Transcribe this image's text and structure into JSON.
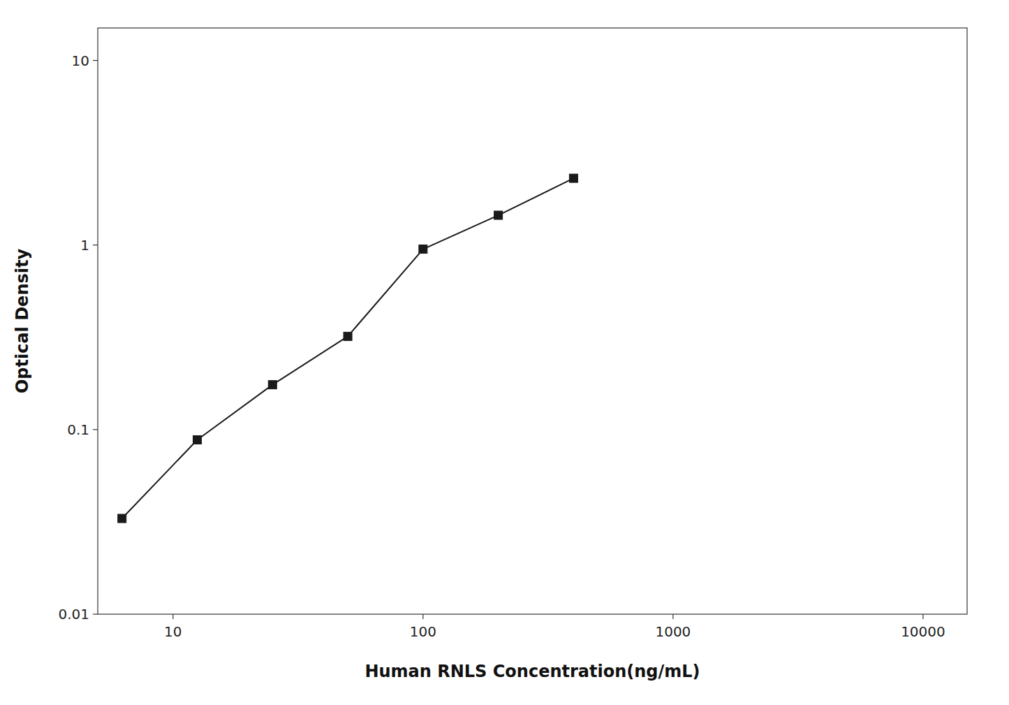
{
  "chart_data": {
    "type": "line",
    "x": [
      6.25,
      12.5,
      25,
      50,
      100,
      200,
      400
    ],
    "values": [
      0.033,
      0.088,
      0.175,
      0.32,
      0.95,
      1.45,
      2.3
    ],
    "xlabel": "Human RNLS Concentration(ng/mL)",
    "ylabel": "Optical Density",
    "xlim": [
      5,
      15000
    ],
    "ylim": [
      0.01,
      15
    ],
    "xticks": [
      10,
      100,
      1000,
      10000
    ],
    "yticks": [
      0.01,
      0.1,
      1,
      10
    ],
    "log": true,
    "grid": false,
    "color": "#1a1a1a",
    "marker": "square"
  }
}
